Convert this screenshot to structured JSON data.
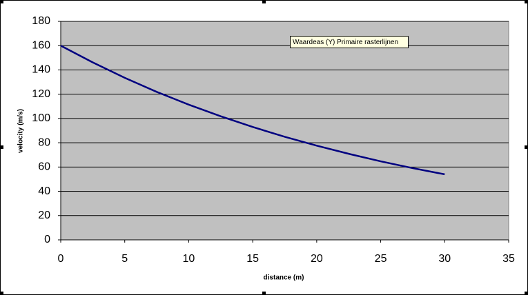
{
  "chart_data": {
    "type": "line",
    "x_label": "distance (m)",
    "y_label": "velocity (m/s)",
    "tooltip": "Waardeas (Y) Primaire rasterlijnen",
    "series": [
      {
        "color": "#000080",
        "x": [
          0,
          2.5,
          5,
          7.5,
          10,
          12.5,
          15,
          17.5,
          20,
          22.5,
          25,
          27.5,
          30
        ],
        "values": [
          160,
          146.2,
          133.5,
          121.9,
          111.4,
          101.8,
          93.0,
          84.9,
          77.6,
          70.9,
          64.7,
          59.1,
          54.0
        ]
      }
    ],
    "xlim": [
      0,
      35
    ],
    "xticks": [
      0,
      5,
      10,
      15,
      20,
      25,
      30,
      35
    ],
    "ylim": [
      0,
      180
    ],
    "yticks": [
      0,
      20,
      40,
      60,
      80,
      100,
      120,
      140,
      160,
      180
    ],
    "grid": true,
    "plot_background": "#c0c0c0"
  }
}
